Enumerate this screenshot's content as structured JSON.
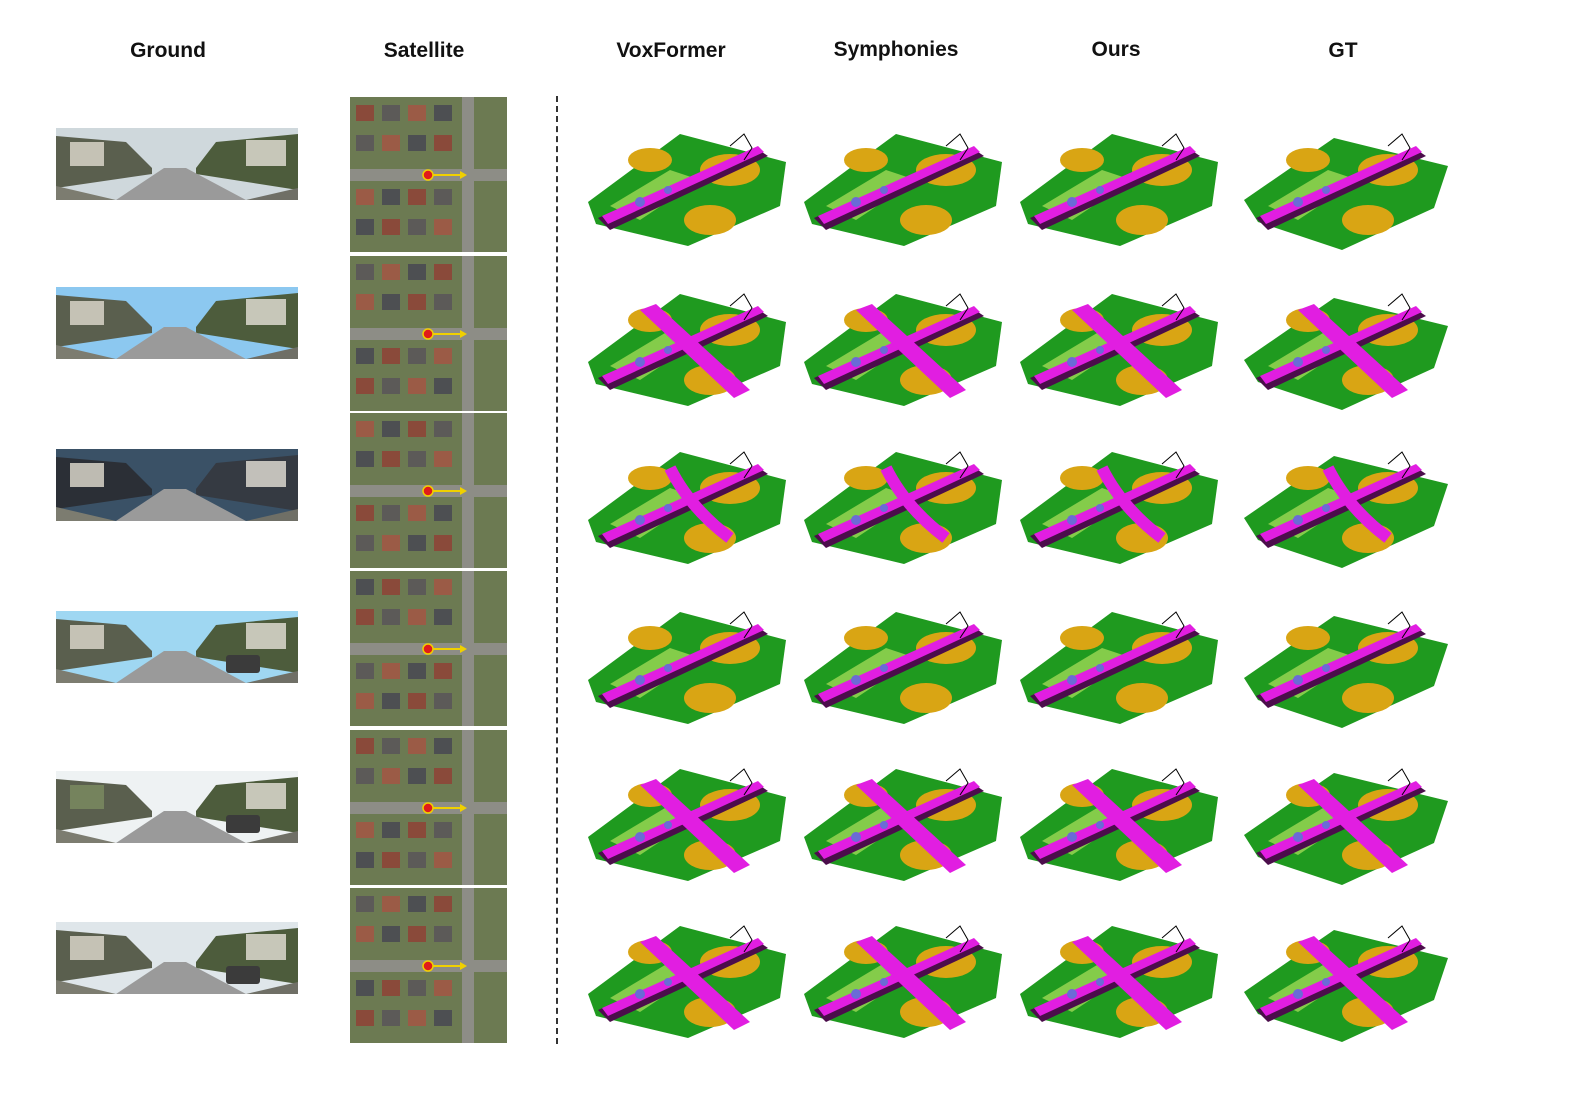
{
  "headers": {
    "ground": "Ground",
    "satellite": "Satellite",
    "voxformer": "VoxFormer",
    "symphonies": "Symphonies",
    "ours": "Ours",
    "gt": "GT"
  },
  "colors": {
    "road": "#e11ee1",
    "vegetation": "#1f9a1f",
    "terrain": "#8fd14f",
    "building": "#d9a514",
    "sidewalk": "#4b0d4b",
    "car": "#6b6bd6",
    "marker_fill": "#e01b1b",
    "marker_ring": "#f0d000",
    "arrow": "#f0d000"
  },
  "scene_rows": [
    {
      "road_shape": "straight"
    },
    {
      "road_shape": "t-junction"
    },
    {
      "road_shape": "curve"
    },
    {
      "road_shape": "straight"
    },
    {
      "road_shape": "t-junction"
    },
    {
      "road_shape": "cross"
    }
  ]
}
